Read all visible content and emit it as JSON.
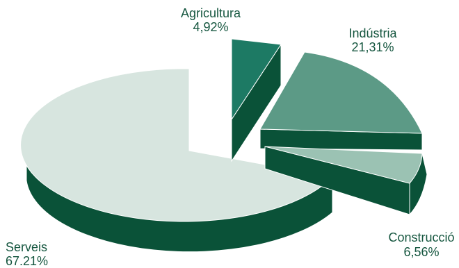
{
  "chart_data": {
    "type": "pie",
    "style": "3d-exploded",
    "slices": [
      {
        "label": "Agricultura",
        "value_text": "4,92%",
        "value": 4.92,
        "top_color": "#1d7a64",
        "side_color": "#0a5238"
      },
      {
        "label": "Indústria",
        "value_text": "21,31%",
        "value": 21.31,
        "top_color": "#5c9a86",
        "side_color": "#0a5238"
      },
      {
        "label": "Construcció",
        "value_text": "6,56%",
        "value": 6.56,
        "top_color": "#9bc2b3",
        "side_color": "#0a5238"
      },
      {
        "label": "Serveis",
        "value_text": "67.21%",
        "value": 67.21,
        "top_color": "#d7e5df",
        "side_color": "#0a5238"
      }
    ]
  }
}
